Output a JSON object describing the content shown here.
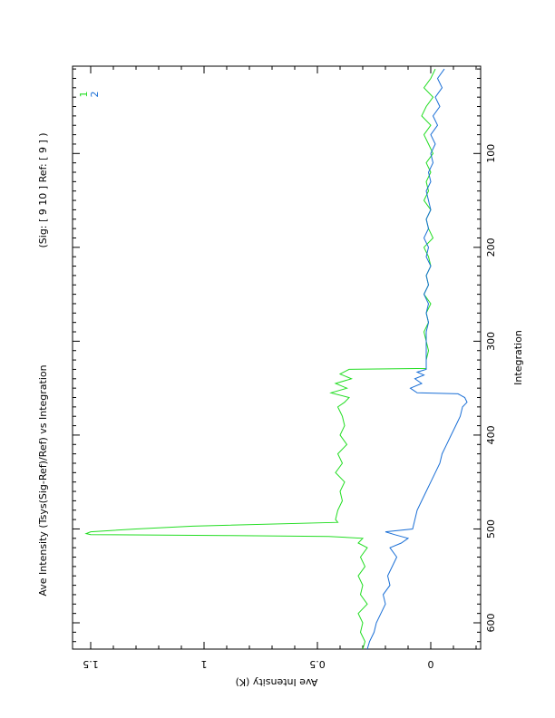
{
  "chart_data": {
    "type": "line",
    "title": "Ave Intensity  (Tsys(Sig-Ref)/Ref)  vs Integration",
    "subtitle": "(Sig: [  9  10  ]  Ref:   [  9  ]  )",
    "xlabel": "Integration",
    "ylabel": "Ave Intensity (K)",
    "xlim": [
      7,
      628
    ],
    "ylim": [
      -0.22,
      1.58
    ],
    "x_ticks": [
      100,
      200,
      300,
      400,
      500,
      600
    ],
    "y_ticks": [
      0,
      0.5,
      1,
      1.5
    ],
    "x_tick_labels": [
      "100",
      "200",
      "300",
      "400",
      "500",
      "600"
    ],
    "y_tick_labels": [
      "0",
      "0.5",
      "1",
      "1.5"
    ],
    "grid": false,
    "legend": "top-right",
    "series": [
      {
        "name": "1",
        "color": "#22dd22",
        "x": [
          10,
          20,
          30,
          40,
          50,
          60,
          70,
          80,
          90,
          100,
          110,
          120,
          130,
          140,
          150,
          160,
          170,
          180,
          190,
          200,
          210,
          220,
          230,
          240,
          250,
          260,
          270,
          280,
          290,
          300,
          310,
          320,
          329,
          330,
          335,
          340,
          345,
          350,
          355,
          360,
          365,
          370,
          380,
          390,
          400,
          410,
          420,
          430,
          440,
          450,
          460,
          470,
          480,
          490,
          493,
          497,
          500,
          503,
          505,
          506,
          507,
          508,
          510,
          515,
          520,
          530,
          540,
          550,
          560,
          570,
          580,
          590,
          600,
          610,
          620,
          628
        ],
        "y": [
          -0.02,
          0.0,
          0.03,
          -0.01,
          0.02,
          0.04,
          0.0,
          0.03,
          0.01,
          -0.01,
          0.02,
          0.0,
          0.02,
          0.01,
          0.03,
          0.0,
          0.02,
          0.01,
          -0.01,
          0.03,
          0.01,
          0.0,
          0.02,
          0.01,
          0.03,
          0.0,
          0.02,
          0.01,
          0.03,
          0.02,
          0.01,
          0.02,
          0.02,
          0.36,
          0.4,
          0.35,
          0.42,
          0.37,
          0.44,
          0.36,
          0.38,
          0.41,
          0.39,
          0.38,
          0.4,
          0.37,
          0.41,
          0.39,
          0.42,
          0.38,
          0.4,
          0.39,
          0.41,
          0.42,
          0.41,
          1.05,
          1.3,
          1.5,
          1.52,
          1.5,
          0.9,
          0.45,
          0.3,
          0.32,
          0.28,
          0.31,
          0.29,
          0.32,
          0.3,
          0.31,
          0.28,
          0.32,
          0.3,
          0.31,
          0.29,
          0.3
        ]
      },
      {
        "name": "2",
        "color": "#1a6fd6",
        "x": [
          10,
          20,
          30,
          40,
          50,
          60,
          70,
          80,
          90,
          100,
          110,
          120,
          130,
          140,
          150,
          160,
          170,
          180,
          190,
          200,
          210,
          220,
          230,
          240,
          250,
          260,
          270,
          280,
          290,
          300,
          310,
          320,
          330,
          333,
          336,
          340,
          345,
          350,
          355,
          356,
          360,
          365,
          370,
          380,
          390,
          400,
          410,
          420,
          430,
          440,
          450,
          460,
          470,
          480,
          490,
          500,
          503,
          506,
          510,
          515,
          520,
          530,
          540,
          550,
          560,
          570,
          580,
          590,
          600,
          610,
          620,
          628
        ],
        "y": [
          -0.06,
          -0.03,
          -0.05,
          -0.02,
          -0.04,
          -0.01,
          -0.03,
          0.0,
          -0.02,
          0.0,
          -0.01,
          0.01,
          0.0,
          0.02,
          0.01,
          0.0,
          0.02,
          0.01,
          0.03,
          0.01,
          0.02,
          0.0,
          0.02,
          0.01,
          0.03,
          0.01,
          0.02,
          0.01,
          0.02,
          0.02,
          0.02,
          0.02,
          0.02,
          0.06,
          0.03,
          0.07,
          0.04,
          0.09,
          0.06,
          -0.12,
          -0.15,
          -0.16,
          -0.14,
          -0.13,
          -0.11,
          -0.09,
          -0.07,
          -0.05,
          -0.04,
          -0.02,
          0.0,
          0.02,
          0.04,
          0.06,
          0.07,
          0.08,
          0.2,
          0.16,
          0.1,
          0.13,
          0.18,
          0.15,
          0.17,
          0.19,
          0.18,
          0.21,
          0.2,
          0.22,
          0.24,
          0.25,
          0.27,
          0.28
        ]
      }
    ]
  }
}
